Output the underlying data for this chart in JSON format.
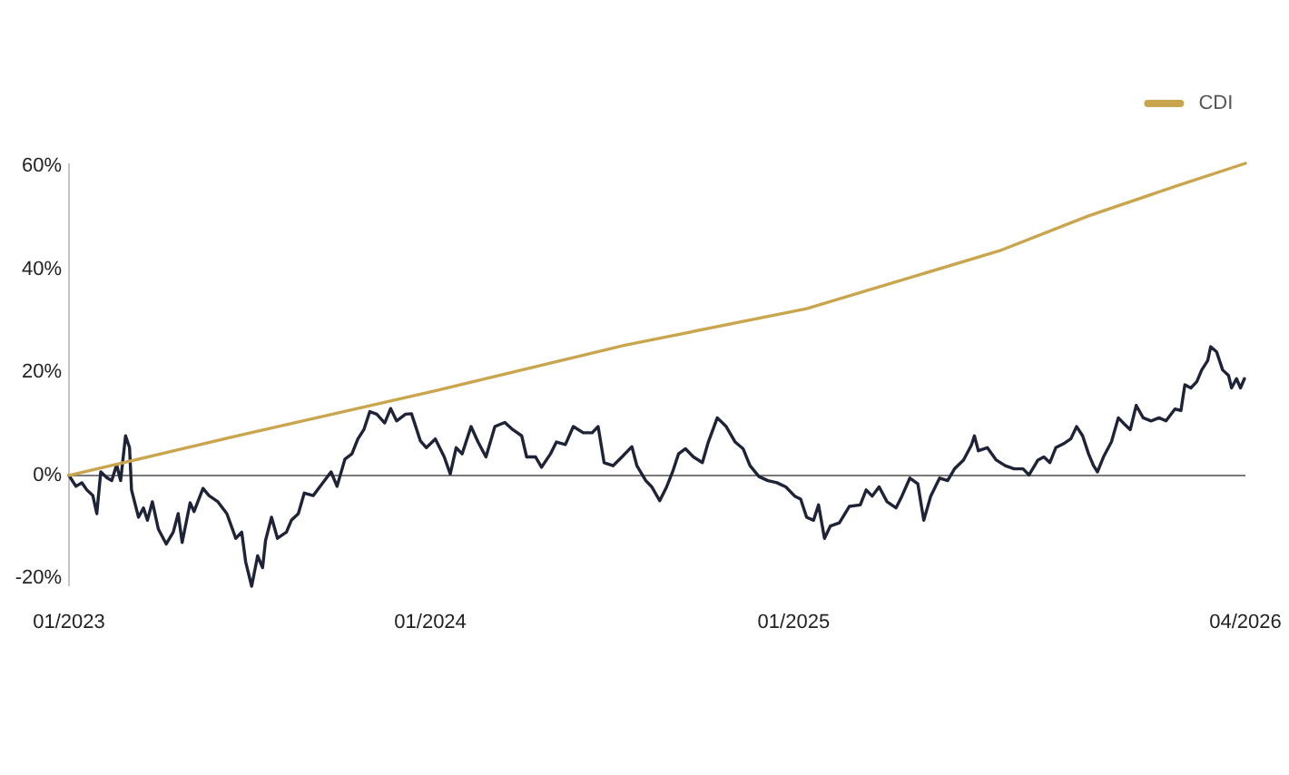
{
  "chart_data": {
    "type": "line",
    "series": [
      {
        "color": "#1f2337",
        "x": [
          "2023-01-02",
          "2023-01-09",
          "2023-01-15",
          "2023-01-20",
          "2023-01-26",
          "2023-01-30",
          "2023-02-03",
          "2023-02-09",
          "2023-02-14",
          "2023-02-19",
          "2023-02-23",
          "2023-02-28",
          "2023-03-04",
          "2023-03-06",
          "2023-03-13",
          "2023-03-18",
          "2023-03-22",
          "2023-03-27",
          "2023-04-02",
          "2023-04-10",
          "2023-04-17",
          "2023-04-22",
          "2023-04-26",
          "2023-05-04",
          "2023-05-08",
          "2023-05-17",
          "2023-05-23",
          "2023-06-01",
          "2023-06-10",
          "2023-06-19",
          "2023-06-25",
          "2023-06-29",
          "2023-07-05",
          "2023-07-11",
          "2023-07-16",
          "2023-07-19",
          "2023-07-25",
          "2023-07-31",
          "2023-08-09",
          "2023-08-14",
          "2023-08-21",
          "2023-08-27",
          "2023-09-05",
          "2023-09-14",
          "2023-09-23",
          "2023-09-29",
          "2023-10-07",
          "2023-10-14",
          "2023-10-20",
          "2023-10-26",
          "2023-11-01",
          "2023-11-08",
          "2023-11-16",
          "2023-11-22",
          "2023-11-28",
          "2023-12-07",
          "2023-12-13",
          "2023-12-22",
          "2023-12-28",
          "2024-01-06",
          "2024-01-15",
          "2024-01-21",
          "2024-01-27",
          "2024-02-02",
          "2024-02-11",
          "2024-02-18",
          "2024-02-26",
          "2024-03-06",
          "2024-03-16",
          "2024-03-24",
          "2024-04-02",
          "2024-04-07",
          "2024-04-16",
          "2024-04-22",
          "2024-05-01",
          "2024-05-07",
          "2024-05-16",
          "2024-05-24",
          "2024-06-03",
          "2024-06-12",
          "2024-06-18",
          "2024-06-24",
          "2024-07-03",
          "2024-07-12",
          "2024-07-22",
          "2024-07-27",
          "2024-08-05",
          "2024-08-11",
          "2024-08-19",
          "2024-08-26",
          "2024-09-01",
          "2024-09-07",
          "2024-09-14",
          "2024-09-22",
          "2024-10-01",
          "2024-10-07",
          "2024-10-16",
          "2024-10-25",
          "2024-11-03",
          "2024-11-11",
          "2024-11-18",
          "2024-11-27",
          "2024-12-06",
          "2024-12-15",
          "2024-12-24",
          "2025-01-02",
          "2025-01-08",
          "2025-01-14",
          "2025-01-21",
          "2025-01-26",
          "2025-02-01",
          "2025-02-07",
          "2025-02-16",
          "2025-02-26",
          "2025-03-09",
          "2025-03-15",
          "2025-03-21",
          "2025-03-28",
          "2025-04-05",
          "2025-04-14",
          "2025-04-20",
          "2025-04-28",
          "2025-05-06",
          "2025-05-12",
          "2025-05-19",
          "2025-05-28",
          "2025-06-05",
          "2025-06-12",
          "2025-06-21",
          "2025-06-29",
          "2025-07-02",
          "2025-07-06",
          "2025-07-15",
          "2025-07-24",
          "2025-08-02",
          "2025-08-11",
          "2025-08-20",
          "2025-08-26",
          "2025-09-04",
          "2025-09-10",
          "2025-09-16",
          "2025-09-22",
          "2025-10-01",
          "2025-10-07",
          "2025-10-13",
          "2025-10-19",
          "2025-10-25",
          "2025-10-30",
          "2025-11-03",
          "2025-11-09",
          "2025-11-17",
          "2025-11-24",
          "2025-11-30",
          "2025-12-06",
          "2025-12-12",
          "2025-12-19",
          "2025-12-27",
          "2026-01-04",
          "2026-01-11",
          "2026-01-20",
          "2026-01-26",
          "2026-01-30",
          "2026-02-05",
          "2026-02-11",
          "2026-02-16",
          "2026-02-22",
          "2026-02-25",
          "2026-03-03",
          "2026-03-09",
          "2026-03-15",
          "2026-03-18",
          "2026-03-23",
          "2026-03-27",
          "2026-03-31"
        ],
        "values": [
          0,
          -2.1,
          -1.4,
          -2.8,
          -3.9,
          -7.4,
          0.7,
          -0.4,
          -1,
          2.1,
          -1,
          7.7,
          5.4,
          -2.8,
          -8.1,
          -6.3,
          -8.7,
          -5.1,
          -10.4,
          -13.3,
          -11,
          -7.4,
          -13,
          -5.3,
          -7,
          -2.5,
          -3.9,
          -5.1,
          -7.4,
          -12.2,
          -11,
          -16.8,
          -21.5,
          -15.6,
          -17.9,
          -12.6,
          -8.1,
          -12.2,
          -11,
          -8.7,
          -7.4,
          -3.4,
          -3.9,
          -1.6,
          0.7,
          -2.1,
          3.2,
          4.2,
          7.1,
          8.9,
          12.4,
          11.9,
          10.2,
          13,
          10.6,
          11.9,
          12,
          6.7,
          5.4,
          7.1,
          3.6,
          0.3,
          5.4,
          4.2,
          9.5,
          6.5,
          3.6,
          9.5,
          10.3,
          8.9,
          7.7,
          3.6,
          3.6,
          1.6,
          4.2,
          6.5,
          6,
          9.5,
          8.3,
          8.3,
          9.5,
          2.5,
          1.9,
          3.6,
          5.6,
          1.9,
          -1,
          -2.2,
          -4.9,
          -2.2,
          0.7,
          4.2,
          5.2,
          3.6,
          2.5,
          6.5,
          11.2,
          9.5,
          6.5,
          5.2,
          1.9,
          -0.2,
          -1,
          -1.4,
          -2.2,
          -4,
          -4.6,
          -8.1,
          -8.7,
          -5.7,
          -12.2,
          -9.8,
          -9.2,
          -6,
          -5.7,
          -2.8,
          -4,
          -2.2,
          -5.1,
          -6.3,
          -4,
          -0.5,
          -1.6,
          -8.7,
          -4,
          -0.5,
          -1,
          1.3,
          3,
          5.9,
          7.7,
          4.8,
          5.4,
          3,
          1.9,
          1.3,
          1.3,
          0.1,
          3,
          3.6,
          2.5,
          5.4,
          6.3,
          7.1,
          9.5,
          7.7,
          4.2,
          1.9,
          0.7,
          3.6,
          6.5,
          11.2,
          10,
          8.9,
          13.6,
          11.2,
          10.6,
          11.2,
          10.6,
          12.9,
          12.6,
          17.6,
          17,
          18.2,
          20.5,
          22.3,
          25,
          24,
          20.5,
          19.4,
          17,
          18.8,
          17,
          18.8
        ]
      },
      {
        "name": "CDI",
        "color": "#c9a54e",
        "x": [
          "2023-01-02",
          "2023-07-04",
          "2024-01-07",
          "2024-07-15",
          "2025-01-14",
          "2025-07-27",
          "2025-10-25",
          "2026-01-23",
          "2026-04-01"
        ],
        "values": [
          0,
          8.3,
          16.5,
          25.3,
          32.4,
          43.6,
          50.4,
          56.3,
          60.6
        ]
      }
    ],
    "xlim": [
      "2023-01-02",
      "2026-04-01"
    ],
    "xticks": [
      {
        "value": "2023-01-02",
        "label": "01/2023"
      },
      {
        "value": "2024-01-01",
        "label": "01/2024"
      },
      {
        "value": "2025-01-01",
        "label": "01/2025"
      },
      {
        "value": "2026-04-01",
        "label": "04/2026"
      }
    ],
    "ylim": [
      -21.5,
      60.6
    ],
    "yticks": [
      {
        "value": -20,
        "label": "-20%"
      },
      {
        "value": 0,
        "label": "0%"
      },
      {
        "value": 20,
        "label": "20%"
      },
      {
        "value": 40,
        "label": "40%"
      },
      {
        "value": 60,
        "label": "60%"
      }
    ],
    "ref_lines": [
      {
        "axis": "y",
        "value": 0,
        "color": "#7a7a7a"
      }
    ],
    "legend": "top right"
  }
}
